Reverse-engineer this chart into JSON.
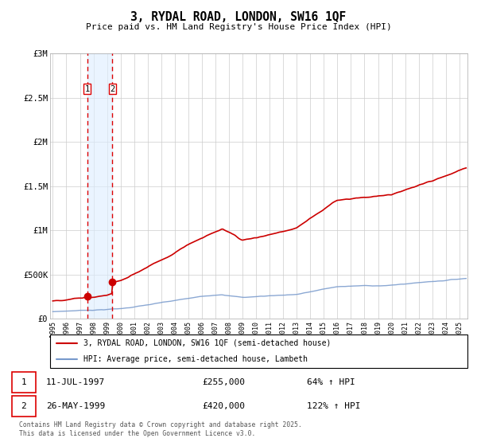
{
  "title": "3, RYDAL ROAD, LONDON, SW16 1QF",
  "subtitle": "Price paid vs. HM Land Registry's House Price Index (HPI)",
  "legend_line1": "3, RYDAL ROAD, LONDON, SW16 1QF (semi-detached house)",
  "legend_line2": "HPI: Average price, semi-detached house, Lambeth",
  "red_line_color": "#cc0000",
  "blue_line_color": "#7799cc",
  "annotation_bg_color": "#ddeeff",
  "dashed_line_color": "#dd0000",
  "transaction1_date": "11-JUL-1997",
  "transaction1_price": "£255,000",
  "transaction1_hpi": "64% ↑ HPI",
  "transaction2_date": "26-MAY-1999",
  "transaction2_price": "£420,000",
  "transaction2_hpi": "122% ↑ HPI",
  "footer": "Contains HM Land Registry data © Crown copyright and database right 2025.\nThis data is licensed under the Open Government Licence v3.0.",
  "ylim": [
    0,
    3000000
  ],
  "yticks": [
    0,
    500000,
    1000000,
    1500000,
    2000000,
    2500000,
    3000000
  ],
  "ytick_labels": [
    "£0",
    "£500K",
    "£1M",
    "£1.5M",
    "£2M",
    "£2.5M",
    "£3M"
  ],
  "x_start_year": 1995,
  "x_end_year": 2025,
  "transaction1_year": 1997.53,
  "transaction2_year": 1999.4,
  "transaction1_price_val": 255000,
  "transaction2_price_val": 420000,
  "background_color": "#ffffff",
  "grid_color": "#cccccc"
}
